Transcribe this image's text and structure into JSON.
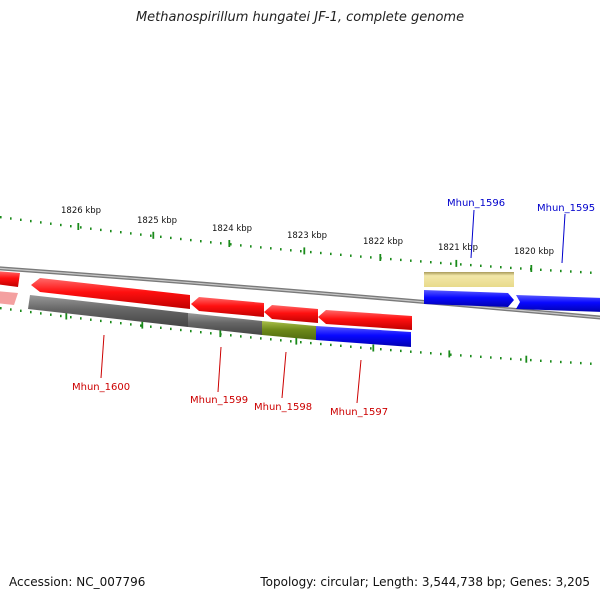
{
  "title": "Methanospirillum hungatei JF-1, complete genome",
  "footer": {
    "accession": "Accession: NC_007796",
    "summary": "Topology: circular; Length: 3,544,738 bp; Genes: 3,205"
  },
  "ruler_labels": [
    "1826 kbp",
    "1825 kbp",
    "1824 kbp",
    "1823 kbp",
    "1822 kbp",
    "1821 kbp",
    "1820 kbp"
  ],
  "gene_labels_reverse": [
    "Mhun_1600",
    "Mhun_1599",
    "Mhun_1598",
    "Mhun_1597"
  ],
  "gene_labels_forward": [
    "Mhun_1596",
    "Mhun_1595"
  ],
  "colors": {
    "reverse_label": "#cc0000",
    "forward_label": "#0000cc",
    "tick": "#1a8a1a",
    "backbone": "#888888",
    "red": "#ff1a1a",
    "blue": "#0a0aff",
    "gray": "#666666",
    "olive": "#6f8a1a",
    "khaki": "#efe39a"
  }
}
